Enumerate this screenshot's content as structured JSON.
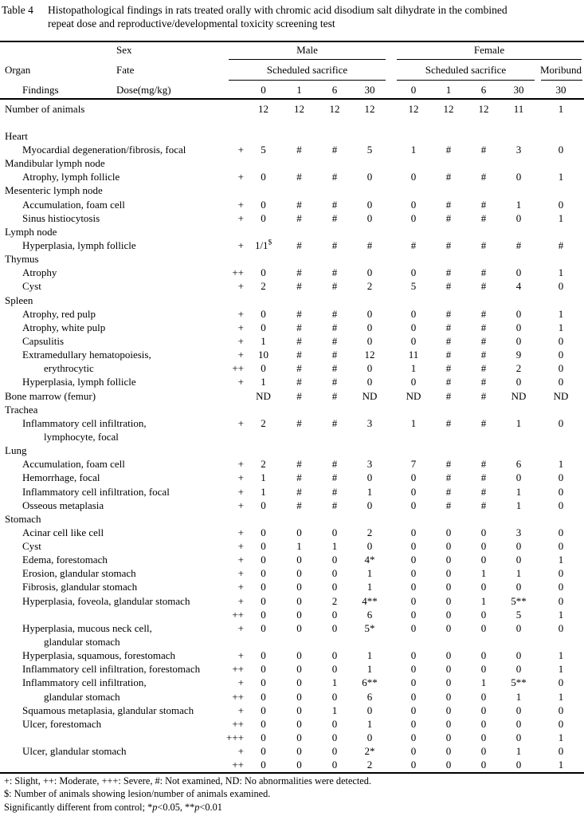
{
  "caption": {
    "label": "Table 4",
    "line1": "Histopathological findings in rats treated orally with chromic acid disodium salt dihydrate in the combined",
    "line2": "repeat dose and reproductive/developmental toxicity screening test"
  },
  "table": {
    "header": {
      "sex": "Sex",
      "organ": "Organ",
      "fate": "Fate",
      "findings": "Findings",
      "dose": "Dose(mg/kg)",
      "male": "Male",
      "female": "Female",
      "male_sub": "Scheduled sacrifice",
      "female_sub": "Scheduled sacrifice",
      "moribund": "Moribund",
      "male_doses": [
        "0",
        "1",
        "6",
        "30"
      ],
      "female_doses": [
        "0",
        "1",
        "6",
        "30"
      ],
      "moribund_dose": "30"
    },
    "rows": [
      {
        "label": "Number of animals",
        "indent": 0,
        "grade": "",
        "values": [
          "12",
          "12",
          "12",
          "12",
          "12",
          "12",
          "12",
          "11",
          "1"
        ]
      },
      {
        "label": "",
        "indent": 0,
        "grade": "",
        "values": null,
        "blank": true
      },
      {
        "label": "Heart",
        "indent": 0,
        "grade": "",
        "values": null
      },
      {
        "label": "Myocardial degeneration/fibrosis, focal",
        "indent": 1,
        "grade": "+",
        "values": [
          "5",
          "#",
          "#",
          "5",
          "1",
          "#",
          "#",
          "3",
          "0"
        ]
      },
      {
        "label": "Mandibular lymph node",
        "indent": 0,
        "grade": "",
        "values": null
      },
      {
        "label": "Atrophy, lymph follicle",
        "indent": 1,
        "grade": "+",
        "values": [
          "0",
          "#",
          "#",
          "0",
          "0",
          "#",
          "#",
          "0",
          "1"
        ]
      },
      {
        "label": "Mesenteric lymph node",
        "indent": 0,
        "grade": "",
        "values": null
      },
      {
        "label": "Accumulation, foam cell",
        "indent": 1,
        "grade": "+",
        "values": [
          "0",
          "#",
          "#",
          "0",
          "0",
          "#",
          "#",
          "1",
          "0"
        ]
      },
      {
        "label": "Sinus histiocytosis",
        "indent": 1,
        "grade": "+",
        "values": [
          "0",
          "#",
          "#",
          "0",
          "0",
          "#",
          "#",
          "0",
          "1"
        ]
      },
      {
        "label": "Lymph node",
        "indent": 0,
        "grade": "",
        "values": null
      },
      {
        "label": "Hyperplasia, lymph follicle",
        "indent": 1,
        "grade": "+",
        "values": [
          "1/1$",
          "#",
          "#",
          "#",
          "#",
          "#",
          "#",
          "#",
          "#"
        ]
      },
      {
        "label": "Thymus",
        "indent": 0,
        "grade": "",
        "values": null
      },
      {
        "label": "Atrophy",
        "indent": 1,
        "grade": "++",
        "values": [
          "0",
          "#",
          "#",
          "0",
          "0",
          "#",
          "#",
          "0",
          "1"
        ]
      },
      {
        "label": "Cyst",
        "indent": 1,
        "grade": "+",
        "values": [
          "2",
          "#",
          "#",
          "2",
          "5",
          "#",
          "#",
          "4",
          "0"
        ]
      },
      {
        "label": "Spleen",
        "indent": 0,
        "grade": "",
        "values": null
      },
      {
        "label": "Atrophy, red pulp",
        "indent": 1,
        "grade": "+",
        "values": [
          "0",
          "#",
          "#",
          "0",
          "0",
          "#",
          "#",
          "0",
          "1"
        ]
      },
      {
        "label": "Atrophy, white pulp",
        "indent": 1,
        "grade": "+",
        "values": [
          "0",
          "#",
          "#",
          "0",
          "0",
          "#",
          "#",
          "0",
          "1"
        ]
      },
      {
        "label": "Capsulitis",
        "indent": 1,
        "grade": "+",
        "values": [
          "1",
          "#",
          "#",
          "0",
          "0",
          "#",
          "#",
          "0",
          "0"
        ]
      },
      {
        "label": "Extramedullary hematopoiesis,",
        "indent": 1,
        "grade": "+",
        "values": [
          "10",
          "#",
          "#",
          "12",
          "11",
          "#",
          "#",
          "9",
          "0"
        ]
      },
      {
        "label": "erythrocytic",
        "indent": 2,
        "grade": "++",
        "values": [
          "0",
          "#",
          "#",
          "0",
          "1",
          "#",
          "#",
          "2",
          "0"
        ]
      },
      {
        "label": "Hyperplasia, lymph follicle",
        "indent": 1,
        "grade": "+",
        "values": [
          "1",
          "#",
          "#",
          "0",
          "0",
          "#",
          "#",
          "0",
          "0"
        ]
      },
      {
        "label": "Bone marrow (femur)",
        "indent": 0,
        "grade": "",
        "values": [
          "ND",
          "#",
          "#",
          "ND",
          "ND",
          "#",
          "#",
          "ND",
          "ND"
        ]
      },
      {
        "label": "Trachea",
        "indent": 0,
        "grade": "",
        "values": null
      },
      {
        "label": "Inflammatory cell infiltration,",
        "indent": 1,
        "grade": "+",
        "values": [
          "2",
          "#",
          "#",
          "3",
          "1",
          "#",
          "#",
          "1",
          "0"
        ]
      },
      {
        "label": "lymphocyte, focal",
        "indent": 2,
        "grade": "",
        "values": null
      },
      {
        "label": "Lung",
        "indent": 0,
        "grade": "",
        "values": null
      },
      {
        "label": "Accumulation, foam cell",
        "indent": 1,
        "grade": "+",
        "values": [
          "2",
          "#",
          "#",
          "3",
          "7",
          "#",
          "#",
          "6",
          "1"
        ]
      },
      {
        "label": "Hemorrhage, focal",
        "indent": 1,
        "grade": "+",
        "values": [
          "1",
          "#",
          "#",
          "0",
          "0",
          "#",
          "#",
          "0",
          "0"
        ]
      },
      {
        "label": "Inflammatory cell infiltration, focal",
        "indent": 1,
        "grade": "+",
        "values": [
          "1",
          "#",
          "#",
          "1",
          "0",
          "#",
          "#",
          "1",
          "0"
        ]
      },
      {
        "label": "Osseous metaplasia",
        "indent": 1,
        "grade": "+",
        "values": [
          "0",
          "#",
          "#",
          "0",
          "0",
          "#",
          "#",
          "1",
          "0"
        ]
      },
      {
        "label": "Stomach",
        "indent": 0,
        "grade": "",
        "values": null
      },
      {
        "label": "Acinar cell like cell",
        "indent": 1,
        "grade": "+",
        "values": [
          "0",
          "0",
          "0",
          "2",
          "0",
          "0",
          "0",
          "3",
          "0"
        ]
      },
      {
        "label": "Cyst",
        "indent": 1,
        "grade": "+",
        "values": [
          "0",
          "1",
          "1",
          "0",
          "0",
          "0",
          "0",
          "0",
          "0"
        ]
      },
      {
        "label": "Edema, forestomach",
        "indent": 1,
        "grade": "+",
        "values": [
          "0",
          "0",
          "0",
          "4*",
          "0",
          "0",
          "0",
          "0",
          "1"
        ]
      },
      {
        "label": "Erosion, glandular stomach",
        "indent": 1,
        "grade": "+",
        "values": [
          "0",
          "0",
          "0",
          "1",
          "0",
          "0",
          "1",
          "1",
          "0"
        ]
      },
      {
        "label": "Fibrosis, glandular stomach",
        "indent": 1,
        "grade": "+",
        "values": [
          "0",
          "0",
          "0",
          "1",
          "0",
          "0",
          "0",
          "0",
          "0"
        ]
      },
      {
        "label": "Hyperplasia, foveola, glandular stomach",
        "indent": 1,
        "grade": "+",
        "values": [
          "0",
          "0",
          "2",
          "4**",
          "0",
          "0",
          "1",
          "5**",
          "0"
        ]
      },
      {
        "label": "",
        "indent": 1,
        "grade": "++",
        "values": [
          "0",
          "0",
          "0",
          "6",
          "0",
          "0",
          "0",
          "5",
          "1"
        ]
      },
      {
        "label": "Hyperplasia, mucous neck cell,",
        "indent": 1,
        "grade": "+",
        "values": [
          "0",
          "0",
          "0",
          "5*",
          "0",
          "0",
          "0",
          "0",
          "0"
        ]
      },
      {
        "label": "glandular stomach",
        "indent": 2,
        "grade": "",
        "values": null
      },
      {
        "label": "Hyperplasia, squamous, forestomach",
        "indent": 1,
        "grade": "+",
        "values": [
          "0",
          "0",
          "0",
          "1",
          "0",
          "0",
          "0",
          "0",
          "1"
        ]
      },
      {
        "label": "Inflammatory cell infiltration, forestomach",
        "indent": 1,
        "grade": "++",
        "values": [
          "0",
          "0",
          "0",
          "1",
          "0",
          "0",
          "0",
          "0",
          "1"
        ]
      },
      {
        "label": "Inflammatory cell infiltration,",
        "indent": 1,
        "grade": "+",
        "values": [
          "0",
          "0",
          "1",
          "6**",
          "0",
          "0",
          "1",
          "5**",
          "0"
        ]
      },
      {
        "label": "glandular stomach",
        "indent": 2,
        "grade": "++",
        "values": [
          "0",
          "0",
          "0",
          "6",
          "0",
          "0",
          "0",
          "1",
          "1"
        ]
      },
      {
        "label": "Squamous metaplasia, glandular stomach",
        "indent": 1,
        "grade": "+",
        "values": [
          "0",
          "0",
          "1",
          "0",
          "0",
          "0",
          "0",
          "0",
          "0"
        ]
      },
      {
        "label": "Ulcer, forestomach",
        "indent": 1,
        "grade": "++",
        "values": [
          "0",
          "0",
          "0",
          "1",
          "0",
          "0",
          "0",
          "0",
          "0"
        ]
      },
      {
        "label": "",
        "indent": 1,
        "grade": "+++",
        "values": [
          "0",
          "0",
          "0",
          "0",
          "0",
          "0",
          "0",
          "0",
          "1"
        ]
      },
      {
        "label": "Ulcer, glandular stomach",
        "indent": 1,
        "grade": "+",
        "values": [
          "0",
          "0",
          "0",
          "2*",
          "0",
          "0",
          "0",
          "1",
          "0"
        ]
      },
      {
        "label": "",
        "indent": 1,
        "grade": "++",
        "values": [
          "0",
          "0",
          "0",
          "2",
          "0",
          "0",
          "0",
          "0",
          "1"
        ]
      }
    ]
  },
  "footnotes": [
    "+: Slight, ++: Moderate, +++: Severe, #: Not examined, ND: No abnormalities were detected.",
    "$: Number of animals showing lesion/number of animals examined.",
    "Significantly different from control; *p<0.05, **p<0.01"
  ]
}
